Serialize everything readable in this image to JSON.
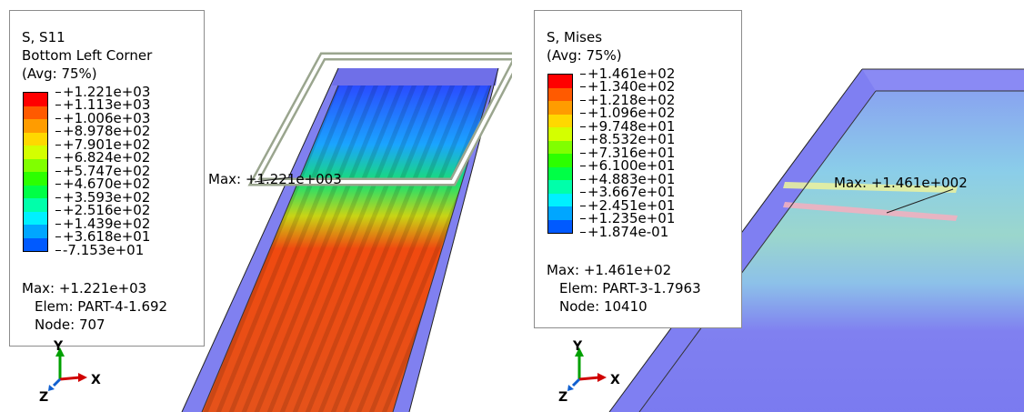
{
  "panels": [
    {
      "legend": {
        "variable": "S, S11",
        "location": "Bottom Left Corner",
        "averaging": "(Avg: 75%)",
        "levels": [
          "+1.221e+03",
          "+1.113e+03",
          "+1.006e+03",
          "+8.978e+02",
          "+7.901e+02",
          "+6.824e+02",
          "+5.747e+02",
          "+4.670e+02",
          "+3.593e+02",
          "+2.516e+02",
          "+1.439e+02",
          "+3.618e+01",
          "-7.153e+01"
        ],
        "colors": [
          "#ff0000",
          "#ff5a00",
          "#ff9c00",
          "#ffd800",
          "#d4ff00",
          "#80ff00",
          "#2cff00",
          "#00ff46",
          "#00ffaa",
          "#00f0ff",
          "#00a6ff",
          "#005aff",
          "#0000ff"
        ],
        "max_value": "Max: +1.221e+03",
        "elem": "Elem: PART-4-1.692",
        "node": "Node: 707"
      },
      "max_label": "Max: +1.221e+003",
      "triad": {
        "y": "Y",
        "x": "X",
        "z": "Z"
      }
    },
    {
      "legend": {
        "variable": "S, Mises",
        "averaging": "(Avg: 75%)",
        "levels": [
          "+1.461e+02",
          "+1.340e+02",
          "+1.218e+02",
          "+1.096e+02",
          "+9.748e+01",
          "+8.532e+01",
          "+7.316e+01",
          "+6.100e+01",
          "+4.883e+01",
          "+3.667e+01",
          "+2.451e+01",
          "+1.235e+01",
          "+1.874e-01"
        ],
        "colors": [
          "#ff0000",
          "#ff5a00",
          "#ff9c00",
          "#ffd800",
          "#d4ff00",
          "#80ff00",
          "#2cff00",
          "#00ff46",
          "#00ffaa",
          "#00f0ff",
          "#00a6ff",
          "#005aff",
          "#0000ff"
        ],
        "max_value": "Max: +1.461e+02",
        "elem": "Elem: PART-3-1.7963",
        "node": "Node: 10410"
      },
      "max_label": "Max: +1.461e+002",
      "triad": {
        "y": "Y",
        "x": "X",
        "z": "Z"
      }
    }
  ]
}
